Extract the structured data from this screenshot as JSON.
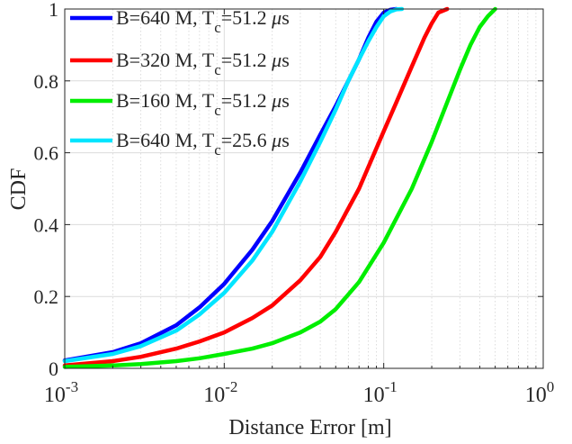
{
  "chart_data": {
    "type": "line",
    "title": "",
    "xlabel": "Distance Error [m]",
    "ylabel": "CDF",
    "xscale": "log",
    "xlim": [
      0.001,
      1
    ],
    "ylim": [
      0,
      1
    ],
    "grid": true,
    "legend_position": "top-left",
    "x_ticks": [
      {
        "value": 0.001,
        "base": "10",
        "exp": "-3"
      },
      {
        "value": 0.01,
        "base": "10",
        "exp": "-2"
      },
      {
        "value": 0.1,
        "base": "10",
        "exp": "-1"
      },
      {
        "value": 1,
        "base": "10",
        "exp": "0"
      }
    ],
    "y_ticks": [
      {
        "value": 0,
        "label": "0"
      },
      {
        "value": 0.2,
        "label": "0.2"
      },
      {
        "value": 0.4,
        "label": "0.4"
      },
      {
        "value": 0.6,
        "label": "0.6"
      },
      {
        "value": 0.8,
        "label": "0.8"
      },
      {
        "value": 1,
        "label": "1"
      }
    ],
    "series": [
      {
        "name": "B=640 M, Tc=51.2 μs",
        "legend": {
          "pre": "B=640 M, T",
          "sub": "c",
          "mid": "=51.2 ",
          "mu": "μ",
          "post": "s"
        },
        "color": "#0000ff",
        "x": [
          0.001,
          0.002,
          0.003,
          0.005,
          0.007,
          0.01,
          0.015,
          0.02,
          0.03,
          0.04,
          0.05,
          0.06,
          0.07,
          0.08,
          0.09,
          0.1,
          0.11,
          0.12
        ],
        "y": [
          0.022,
          0.045,
          0.07,
          0.12,
          0.17,
          0.235,
          0.33,
          0.41,
          0.545,
          0.65,
          0.73,
          0.8,
          0.86,
          0.92,
          0.965,
          0.99,
          0.998,
          1.0
        ]
      },
      {
        "name": "B=320 M, Tc=51.2 μs",
        "legend": {
          "pre": "B=320 M, T",
          "sub": "c",
          "mid": "=51.2 ",
          "mu": "μ",
          "post": "s"
        },
        "color": "#ff0000",
        "x": [
          0.001,
          0.002,
          0.003,
          0.005,
          0.007,
          0.01,
          0.015,
          0.02,
          0.03,
          0.04,
          0.05,
          0.07,
          0.1,
          0.12,
          0.15,
          0.18,
          0.2,
          0.22,
          0.25
        ],
        "y": [
          0.008,
          0.02,
          0.032,
          0.055,
          0.075,
          0.1,
          0.14,
          0.175,
          0.245,
          0.31,
          0.38,
          0.5,
          0.66,
          0.74,
          0.84,
          0.92,
          0.96,
          0.99,
          1.0
        ]
      },
      {
        "name": "B=160 M, Tc=51.2 μs",
        "legend": {
          "pre": "B=160 M, T",
          "sub": "c",
          "mid": "=51.2 ",
          "mu": "μ",
          "post": "s"
        },
        "color": "#00ee00",
        "x": [
          0.001,
          0.002,
          0.003,
          0.005,
          0.007,
          0.01,
          0.015,
          0.02,
          0.03,
          0.04,
          0.05,
          0.07,
          0.1,
          0.15,
          0.2,
          0.25,
          0.3,
          0.35,
          0.4,
          0.45,
          0.5
        ],
        "y": [
          0.004,
          0.008,
          0.012,
          0.02,
          0.028,
          0.04,
          0.055,
          0.07,
          0.1,
          0.13,
          0.165,
          0.24,
          0.35,
          0.5,
          0.63,
          0.74,
          0.83,
          0.9,
          0.95,
          0.98,
          1.0
        ]
      },
      {
        "name": "B=640 M, Tc=25.6 μs",
        "legend": {
          "pre": "B=640 M, T",
          "sub": "c",
          "mid": "=25.6 ",
          "mu": "μ",
          "post": "s"
        },
        "color": "#00e5ff",
        "x": [
          0.001,
          0.002,
          0.003,
          0.005,
          0.007,
          0.01,
          0.015,
          0.02,
          0.03,
          0.04,
          0.05,
          0.06,
          0.07,
          0.08,
          0.09,
          0.1,
          0.11,
          0.12,
          0.13
        ],
        "y": [
          0.02,
          0.04,
          0.062,
          0.105,
          0.15,
          0.21,
          0.3,
          0.38,
          0.52,
          0.63,
          0.72,
          0.8,
          0.86,
          0.91,
          0.95,
          0.98,
          0.993,
          0.999,
          1.0
        ]
      }
    ]
  }
}
